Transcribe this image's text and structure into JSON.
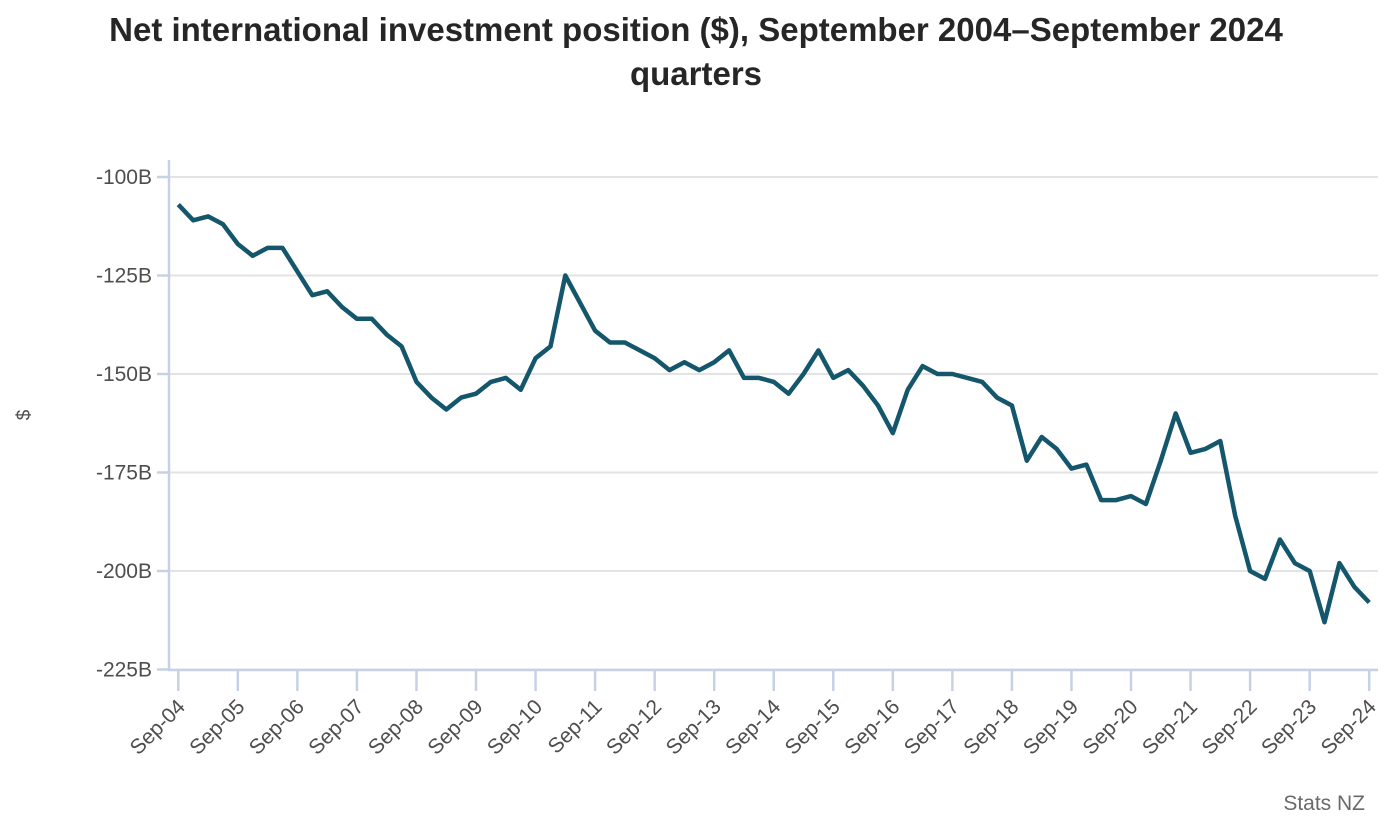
{
  "header": {
    "title": "Net international investment position ($), September 2004–September 2024 quarters"
  },
  "footer": {
    "credit": "Stats NZ"
  },
  "colors": {
    "line": "#14566b",
    "grid": "#e3e3e3",
    "axis": "#c7d1e5",
    "tick": "#c7d1e5",
    "axis_label": "#4e4e4e",
    "title": "#262626",
    "credit": "#6a6a6a",
    "background": "#ffffff"
  },
  "chart_data": {
    "type": "line",
    "title": "Net international investment position ($), September 2004–September 2024 quarters",
    "xlabel": "",
    "ylabel": "$",
    "unit": "NZ dollars, billions",
    "source": "Stats NZ",
    "grid": "horizontal",
    "legend": "none",
    "ylim": [
      -225,
      -100
    ],
    "y_breaks": [
      -100,
      -125,
      -150,
      -175,
      -200,
      -225
    ],
    "y_tick_labels": [
      "-100B",
      "-125B",
      "-150B",
      "-175B",
      "-200B",
      "-225B"
    ],
    "x_tick_labels": [
      "Sep-04",
      "Sep-05",
      "Sep-06",
      "Sep-07",
      "Sep-08",
      "Sep-09",
      "Sep-10",
      "Sep-11",
      "Sep-12",
      "Sep-13",
      "Sep-14",
      "Sep-15",
      "Sep-16",
      "Sep-17",
      "Sep-18",
      "Sep-19",
      "Sep-20",
      "Sep-21",
      "Sep-22",
      "Sep-23",
      "Sep-24"
    ],
    "x": [
      "Sep-04",
      "Dec-04",
      "Mar-05",
      "Jun-05",
      "Sep-05",
      "Dec-05",
      "Mar-06",
      "Jun-06",
      "Sep-06",
      "Dec-06",
      "Mar-07",
      "Jun-07",
      "Sep-07",
      "Dec-07",
      "Mar-08",
      "Jun-08",
      "Sep-08",
      "Dec-08",
      "Mar-09",
      "Jun-09",
      "Sep-09",
      "Dec-09",
      "Mar-10",
      "Jun-10",
      "Sep-10",
      "Dec-10",
      "Mar-11",
      "Jun-11",
      "Sep-11",
      "Dec-11",
      "Mar-12",
      "Jun-12",
      "Sep-12",
      "Dec-12",
      "Mar-13",
      "Jun-13",
      "Sep-13",
      "Dec-13",
      "Mar-14",
      "Jun-14",
      "Sep-14",
      "Dec-14",
      "Mar-15",
      "Jun-15",
      "Sep-15",
      "Dec-15",
      "Mar-16",
      "Jun-16",
      "Sep-16",
      "Dec-16",
      "Mar-17",
      "Jun-17",
      "Sep-17",
      "Dec-17",
      "Mar-18",
      "Jun-18",
      "Sep-18",
      "Dec-18",
      "Mar-19",
      "Jun-19",
      "Sep-19",
      "Dec-19",
      "Mar-20",
      "Jun-20",
      "Sep-20",
      "Dec-20",
      "Mar-21",
      "Jun-21",
      "Sep-21",
      "Dec-21",
      "Mar-22",
      "Jun-22",
      "Sep-22",
      "Dec-22",
      "Mar-23",
      "Jun-23",
      "Sep-23",
      "Dec-23",
      "Mar-24",
      "Jun-24",
      "Sep-24"
    ],
    "values": [
      -107,
      -111,
      -110,
      -112,
      -117,
      -120,
      -118,
      -118,
      -124,
      -130,
      -129,
      -133,
      -136,
      -136,
      -140,
      -143,
      -152,
      -156,
      -159,
      -156,
      -155,
      -152,
      -151,
      -154,
      -146,
      -143,
      -125,
      -132,
      -139,
      -142,
      -142,
      -144,
      -146,
      -149,
      -147,
      -149,
      -147,
      -144,
      -151,
      -151,
      -152,
      -155,
      -150,
      -144,
      -151,
      -149,
      -153,
      -158,
      -165,
      -154,
      -148,
      -150,
      -150,
      -151,
      -152,
      -156,
      -158,
      -172,
      -166,
      -169,
      -174,
      -173,
      -182,
      -182,
      -181,
      -183,
      -172,
      -160,
      -170,
      -169,
      -167,
      -186,
      -200,
      -202,
      -192,
      -198,
      -200,
      -213,
      -198,
      -204,
      -208
    ]
  }
}
